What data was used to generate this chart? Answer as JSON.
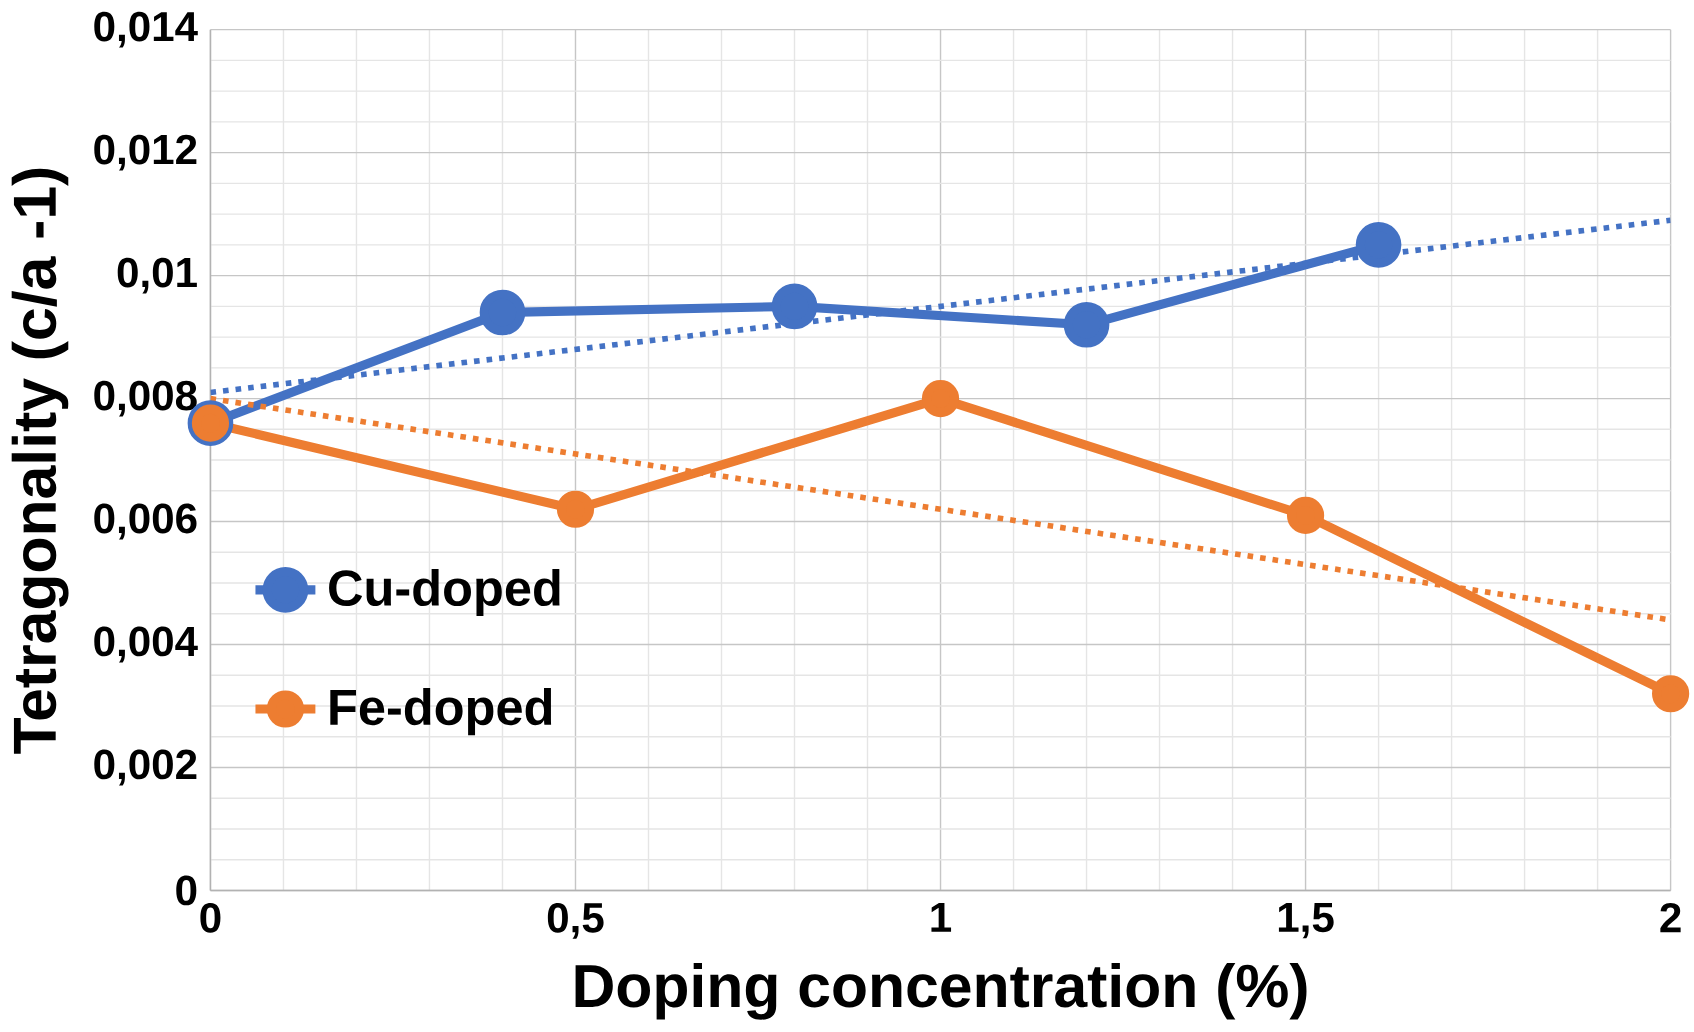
{
  "chart_data": {
    "type": "line",
    "xlabel": "Doping concentration (%)",
    "ylabel": "Tetragonality (c/a -1)",
    "xlim": [
      0,
      2
    ],
    "ylim": [
      0,
      0.014
    ],
    "xticks": [
      0,
      {
        "value": 0.5,
        "label": "0,5"
      },
      1,
      {
        "value": 1.5,
        "label": "1,5"
      },
      2
    ],
    "yticks": [
      0,
      {
        "value": 0.002,
        "label": "0,002"
      },
      {
        "value": 0.004,
        "label": "0,004"
      },
      {
        "value": 0.006,
        "label": "0,006"
      },
      {
        "value": 0.008,
        "label": "0,008"
      },
      {
        "value": 0.01,
        "label": "0,01"
      },
      {
        "value": 0.012,
        "label": "0,012"
      },
      {
        "value": 0.014,
        "label": "0,014"
      }
    ],
    "grid": true,
    "legend": "left",
    "marker": "circle",
    "line_style": "solid",
    "series": [
      {
        "name": "Cu-doped",
        "color": "#4472c4",
        "x": [
          0,
          0.4,
          0.8,
          1.2,
          1.6
        ],
        "values": [
          0.0076,
          0.0094,
          0.0095,
          0.0092,
          0.0105
        ]
      },
      {
        "name": "Fe-doped",
        "color": "#ed7d31",
        "x": [
          0,
          0.5,
          1,
          1.5,
          2
        ],
        "values": [
          0.0076,
          0.0062,
          0.008,
          0.0061,
          0.0032
        ]
      },
      {
        "type": "line",
        "color": "#4472c4",
        "x": [
          0,
          2
        ],
        "values": [
          0.0081,
          0.0109
        ],
        "marker": "none",
        "line_style": "dotted"
      },
      {
        "type": "line",
        "color": "#ed7d31",
        "x": [
          0,
          2
        ],
        "values": [
          0.008,
          0.0044
        ],
        "marker": "none",
        "line_style": "dotted"
      }
    ]
  }
}
